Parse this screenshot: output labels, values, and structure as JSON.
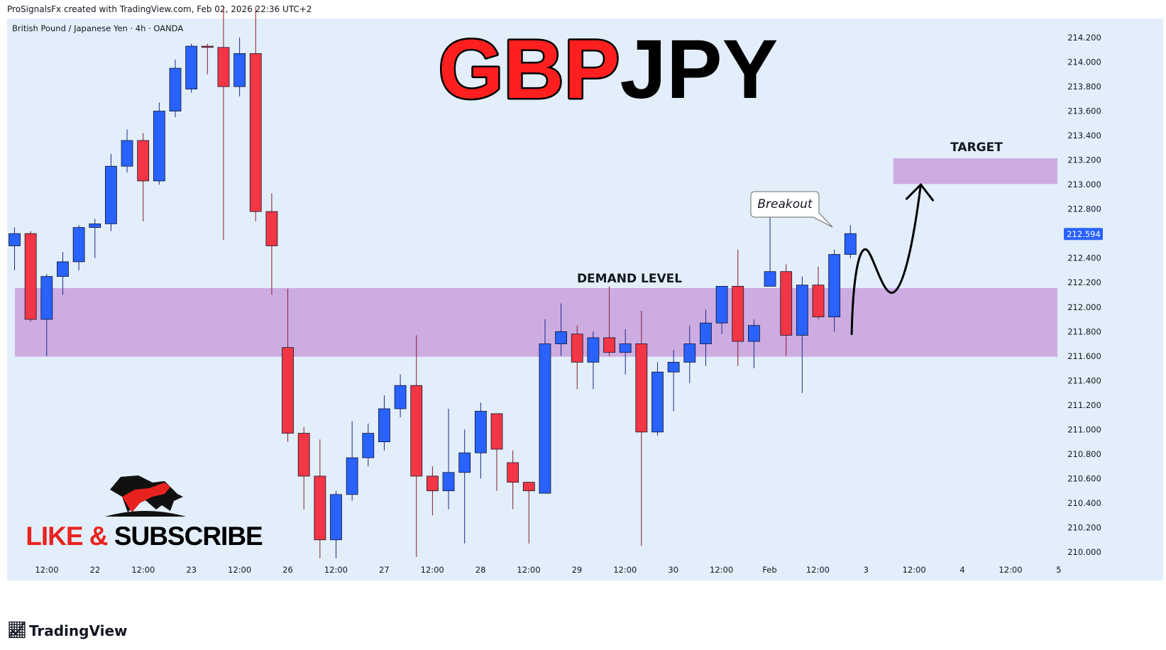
{
  "header": {
    "attribution": "ProSignalsFx created with TradingView.com, Feb 02, 2026 22:36 UTC+2"
  },
  "footer": {
    "brand": "TradingView"
  },
  "overlay": {
    "title_part1": "GBP",
    "title_part2": "JPY",
    "subscribe_text": "LIKE & SUBSCRIBE",
    "bull_bear_icon": "bull-bear-icon"
  },
  "colors": {
    "background": "#e2eef9",
    "up": "#2962ff",
    "down": "#f23645",
    "zone": "#cba8e0",
    "title_red": "#ff1f1f",
    "title_black": "#000000",
    "price_label_bg": "#2962ff"
  },
  "chart_data": {
    "type": "candlestick",
    "title": "British Pound / Japanese Yen · 4h · OANDA",
    "ylim": [
      209.9,
      214.35
    ],
    "y_ticks": [
      "214.200",
      "214.000",
      "213.800",
      "213.600",
      "213.400",
      "213.200",
      "213.000",
      "212.800",
      "212.600",
      "212.400",
      "212.200",
      "212.000",
      "211.800",
      "211.600",
      "211.400",
      "211.200",
      "211.000",
      "210.800",
      "210.600",
      "210.400",
      "210.200",
      "210.000"
    ],
    "x_ticks": [
      "12:00",
      "22",
      "12:00",
      "23",
      "12:00",
      "26",
      "12:00",
      "27",
      "12:00",
      "28",
      "12:00",
      "29",
      "12:00",
      "30",
      "12:00",
      "Feb",
      "12:00",
      "3",
      "12:00",
      "4",
      "12:00",
      "5"
    ],
    "current_price": "212.594",
    "candles": [
      {
        "o": 212.5,
        "h": 212.65,
        "l": 212.3,
        "c": 212.6
      },
      {
        "o": 212.6,
        "h": 212.62,
        "l": 211.88,
        "c": 211.9
      },
      {
        "o": 211.9,
        "h": 212.27,
        "l": 211.6,
        "c": 212.25
      },
      {
        "o": 212.25,
        "h": 212.45,
        "l": 212.1,
        "c": 212.37
      },
      {
        "o": 212.37,
        "h": 212.67,
        "l": 212.3,
        "c": 212.65
      },
      {
        "o": 212.65,
        "h": 212.72,
        "l": 212.4,
        "c": 212.68
      },
      {
        "o": 212.68,
        "h": 213.25,
        "l": 212.62,
        "c": 213.15
      },
      {
        "o": 213.15,
        "h": 213.45,
        "l": 213.1,
        "c": 213.36
      },
      {
        "o": 213.36,
        "h": 213.42,
        "l": 212.7,
        "c": 213.03
      },
      {
        "o": 213.03,
        "h": 213.67,
        "l": 213.0,
        "c": 213.6
      },
      {
        "o": 213.6,
        "h": 214.02,
        "l": 213.55,
        "c": 213.95
      },
      {
        "o": 213.78,
        "h": 214.15,
        "l": 213.75,
        "c": 214.13
      },
      {
        "o": 214.13,
        "h": 214.15,
        "l": 213.9,
        "c": 214.12
      },
      {
        "o": 214.12,
        "h": 214.45,
        "l": 212.55,
        "c": 213.8
      },
      {
        "o": 213.8,
        "h": 214.2,
        "l": 213.72,
        "c": 214.07
      },
      {
        "o": 214.07,
        "h": 214.45,
        "l": 212.7,
        "c": 212.78
      },
      {
        "o": 212.78,
        "h": 212.93,
        "l": 212.1,
        "c": 212.5
      },
      {
        "o": 211.67,
        "h": 212.15,
        "l": 210.9,
        "c": 210.97
      },
      {
        "o": 210.97,
        "h": 211.02,
        "l": 210.35,
        "c": 210.62
      },
      {
        "o": 210.62,
        "h": 210.92,
        "l": 209.95,
        "c": 210.1
      },
      {
        "o": 210.1,
        "h": 210.5,
        "l": 209.95,
        "c": 210.47
      },
      {
        "o": 210.47,
        "h": 211.07,
        "l": 210.42,
        "c": 210.77
      },
      {
        "o": 210.77,
        "h": 211.05,
        "l": 210.7,
        "c": 210.97
      },
      {
        "o": 210.9,
        "h": 211.28,
        "l": 210.83,
        "c": 211.17
      },
      {
        "o": 211.17,
        "h": 211.45,
        "l": 211.1,
        "c": 211.36
      },
      {
        "o": 211.36,
        "h": 211.77,
        "l": 209.96,
        "c": 210.62
      },
      {
        "o": 210.62,
        "h": 210.7,
        "l": 210.3,
        "c": 210.5
      },
      {
        "o": 210.5,
        "h": 211.17,
        "l": 210.35,
        "c": 210.65
      },
      {
        "o": 210.65,
        "h": 211.0,
        "l": 210.07,
        "c": 210.81
      },
      {
        "o": 210.81,
        "h": 211.22,
        "l": 210.6,
        "c": 211.15
      },
      {
        "o": 211.13,
        "h": 211.13,
        "l": 210.5,
        "c": 210.84
      },
      {
        "o": 210.73,
        "h": 210.83,
        "l": 210.35,
        "c": 210.57
      },
      {
        "o": 210.57,
        "h": 210.57,
        "l": 210.07,
        "c": 210.5
      },
      {
        "o": 210.48,
        "h": 211.9,
        "l": 210.48,
        "c": 211.7
      },
      {
        "o": 211.7,
        "h": 212.03,
        "l": 211.6,
        "c": 211.8
      },
      {
        "o": 211.78,
        "h": 211.85,
        "l": 211.33,
        "c": 211.55
      },
      {
        "o": 211.55,
        "h": 211.8,
        "l": 211.33,
        "c": 211.75
      },
      {
        "o": 211.75,
        "h": 212.17,
        "l": 211.6,
        "c": 211.63
      },
      {
        "o": 211.63,
        "h": 211.82,
        "l": 211.45,
        "c": 211.7
      },
      {
        "o": 211.7,
        "h": 211.97,
        "l": 210.05,
        "c": 210.98
      },
      {
        "o": 210.98,
        "h": 211.55,
        "l": 210.95,
        "c": 211.47
      },
      {
        "o": 211.47,
        "h": 211.65,
        "l": 211.15,
        "c": 211.55
      },
      {
        "o": 211.55,
        "h": 211.85,
        "l": 211.38,
        "c": 211.7
      },
      {
        "o": 211.7,
        "h": 211.98,
        "l": 211.52,
        "c": 211.87
      },
      {
        "o": 211.87,
        "h": 212.17,
        "l": 211.78,
        "c": 212.17
      },
      {
        "o": 212.17,
        "h": 212.47,
        "l": 211.52,
        "c": 211.72
      },
      {
        "o": 211.72,
        "h": 211.9,
        "l": 211.5,
        "c": 211.85
      },
      {
        "o": 212.17,
        "h": 212.82,
        "l": 212.17,
        "c": 212.29
      },
      {
        "o": 212.29,
        "h": 212.35,
        "l": 211.6,
        "c": 211.77
      },
      {
        "o": 211.77,
        "h": 212.25,
        "l": 211.3,
        "c": 212.18
      },
      {
        "o": 212.18,
        "h": 212.33,
        "l": 211.9,
        "c": 211.92
      },
      {
        "o": 211.92,
        "h": 212.47,
        "l": 211.8,
        "c": 212.43
      },
      {
        "o": 212.43,
        "h": 212.67,
        "l": 212.4,
        "c": 212.6
      }
    ],
    "zones": [
      {
        "label": "DEMAND LEVEL",
        "from": 211.595,
        "to": 212.155,
        "x_start": 0,
        "x_end": 65.0
      },
      {
        "label": "TARGET",
        "from": 213.005,
        "to": 213.215,
        "x_start": 54.6,
        "x_end": 65.0
      }
    ],
    "annotations": {
      "breakout": "Breakout",
      "breakout_index": 47
    },
    "projection_path": [
      {
        "i": 52.1,
        "p": 211.78
      },
      {
        "i": 52.4,
        "p": 212.2
      },
      {
        "i": 52.9,
        "p": 212.47
      },
      {
        "i": 53.5,
        "p": 212.47
      },
      {
        "i": 54.7,
        "p": 212.12
      },
      {
        "i": 55.8,
        "p": 212.4
      },
      {
        "i": 56.2,
        "p": 212.98
      },
      {
        "i": 56.4,
        "p": 213.0
      }
    ]
  }
}
